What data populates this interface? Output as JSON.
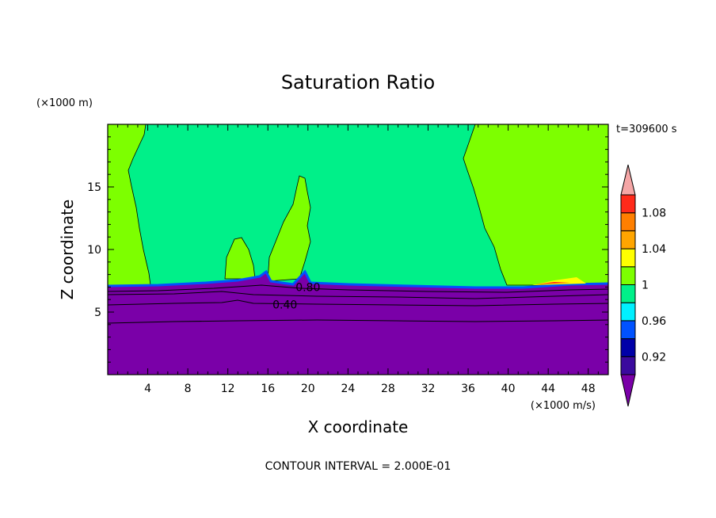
{
  "chart_data": {
    "type": "heatmap",
    "title": "Saturation Ratio",
    "xlabel": "X coordinate",
    "ylabel": "Z coordinate",
    "x_unit": "(×1000 m/s)",
    "y_unit": "(×1000 m)",
    "time_label": "t=309600 s",
    "footer": "CONTOUR INTERVAL = 2.000E-01",
    "xlim": [
      0,
      50
    ],
    "ylim": [
      0,
      20
    ],
    "x_ticks": [
      4,
      8,
      12,
      16,
      20,
      24,
      28,
      32,
      36,
      40,
      44,
      48
    ],
    "y_ticks": [
      5,
      10,
      15
    ],
    "colorbar": {
      "levels": [
        0.9,
        0.92,
        0.94,
        0.96,
        0.98,
        1.0,
        1.02,
        1.04,
        1.06,
        1.08,
        1.1
      ],
      "colors": [
        "#3a0a9e",
        "#0000a8",
        "#0052ff",
        "#00f0ff",
        "#00f089",
        "#7dff00",
        "#ffff00",
        "#ffa500",
        "#ff7f00",
        "#ff2a1a"
      ],
      "under_color": "#7a00a8",
      "over_color": "#f5a6a6",
      "labels": [
        "0.92",
        "0.96",
        "1",
        "1.04",
        "1.08"
      ],
      "label_values": [
        0.92,
        0.96,
        1.0,
        1.04,
        1.08
      ]
    },
    "regions": [
      {
        "name": "lower-subsaturated",
        "z_range": [
          0,
          7
        ],
        "value": 0.4,
        "color": "#7a00a8"
      },
      {
        "name": "upper-near-saturated",
        "z_range": [
          7,
          20
        ],
        "value": 0.99,
        "color": "#00f089"
      },
      {
        "name": "left-supersaturated",
        "x_range": [
          0,
          4
        ],
        "z_range": [
          7,
          20
        ],
        "value": 1.01,
        "color": "#7dff00"
      },
      {
        "name": "right-supersaturated",
        "x_range": [
          36,
          50
        ],
        "z_range": [
          7,
          20
        ],
        "value": 1.01,
        "color": "#7dff00"
      }
    ],
    "contour_labels": [
      {
        "text": "0.80",
        "x": 20,
        "z": 7.0
      },
      {
        "text": "0.40",
        "x": 17.7,
        "z": 5.6
      }
    ]
  }
}
